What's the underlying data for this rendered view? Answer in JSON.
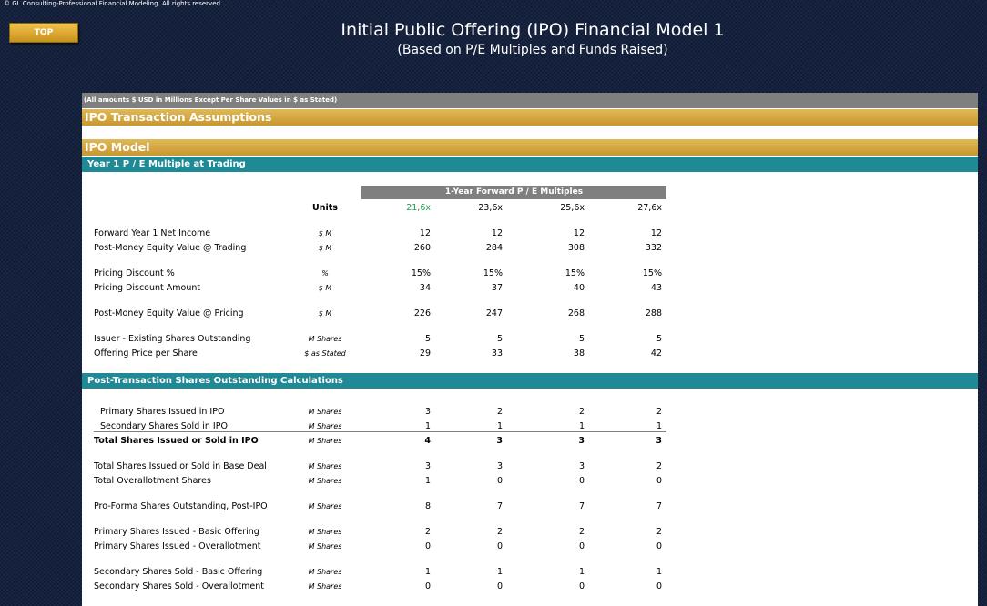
{
  "copyright": "© GL Consulting-Professional Financial Modeling. All rights reserved.",
  "top_button": "TOP",
  "title": "Initial Public Offering (IPO) Financial Model 1",
  "subtitle": "(Based on P/E Multiples and Funds Raised)",
  "note": "(All amounts $ USD in Millions Except Per Share Values in $ as Stated)",
  "sections": {
    "assumptions": "IPO Transaction Assumptions",
    "model": "IPO Model",
    "pe_multiple": "Year 1 P / E Multiple at Trading",
    "post_transaction": "Post-Transaction Shares Outstanding Calculations"
  },
  "multiples_header": "1-Year Forward P / E Multiples",
  "units_header": "Units",
  "multiples": [
    "21,6x",
    "23,6x",
    "25,6x",
    "27,6x"
  ],
  "colors": {
    "highlight_multiple": "#1e9f4e",
    "gold": "#c9972e",
    "teal": "#1f8a96"
  },
  "rows": [
    {
      "label": "Forward Year 1 Net Income",
      "unit": "$ M",
      "values": [
        "12",
        "12",
        "12",
        "12"
      ]
    },
    {
      "label": "Post-Money Equity Value @ Trading",
      "unit": "$ M",
      "values": [
        "260",
        "284",
        "308",
        "332"
      ]
    },
    {
      "label": "Pricing Discount %",
      "unit": "%",
      "values": [
        "15%",
        "15%",
        "15%",
        "15%"
      ]
    },
    {
      "label": "Pricing Discount Amount",
      "unit": "$ M",
      "values": [
        "34",
        "37",
        "40",
        "43"
      ]
    },
    {
      "label": "Post-Money Equity Value @ Pricing",
      "unit": "$ M",
      "values": [
        "226",
        "247",
        "268",
        "288"
      ]
    },
    {
      "label": "Issuer - Existing Shares Outstanding",
      "unit": "M Shares",
      "values": [
        "5",
        "5",
        "5",
        "5"
      ]
    },
    {
      "label": "Offering Price per Share",
      "unit": "$ as Stated",
      "values": [
        "29",
        "33",
        "38",
        "42"
      ]
    }
  ],
  "share_rows": [
    {
      "label": "Primary Shares Issued in IPO",
      "unit": "M Shares",
      "values": [
        "3",
        "2",
        "2",
        "2"
      ]
    },
    {
      "label": "Secondary Shares Sold in IPO",
      "unit": "M Shares",
      "values": [
        "1",
        "1",
        "1",
        "1"
      ]
    },
    {
      "label": "Total Shares Issued or Sold in IPO",
      "unit": "M Shares",
      "values": [
        "4",
        "3",
        "3",
        "3"
      ]
    },
    {
      "label": "Total Shares Issued or Sold in Base Deal",
      "unit": "M Shares",
      "values": [
        "3",
        "3",
        "3",
        "2"
      ]
    },
    {
      "label": "Total Overallotment Shares",
      "unit": "M Shares",
      "values": [
        "1",
        "0",
        "0",
        "0"
      ]
    },
    {
      "label": "Pro-Forma Shares Outstanding, Post-IPO",
      "unit": "M Shares",
      "values": [
        "8",
        "7",
        "7",
        "7"
      ]
    },
    {
      "label": "Primary Shares Issued - Basic Offering",
      "unit": "M Shares",
      "values": [
        "2",
        "2",
        "2",
        "2"
      ]
    },
    {
      "label": "Primary Shares Issued - Overallotment",
      "unit": "M Shares",
      "values": [
        "0",
        "0",
        "0",
        "0"
      ]
    },
    {
      "label": "Secondary Shares Sold - Basic Offering",
      "unit": "M Shares",
      "values": [
        "1",
        "1",
        "1",
        "1"
      ]
    },
    {
      "label": "Secondary Shares Sold - Overallotment",
      "unit": "M Shares",
      "values": [
        "0",
        "0",
        "0",
        "0"
      ]
    }
  ]
}
